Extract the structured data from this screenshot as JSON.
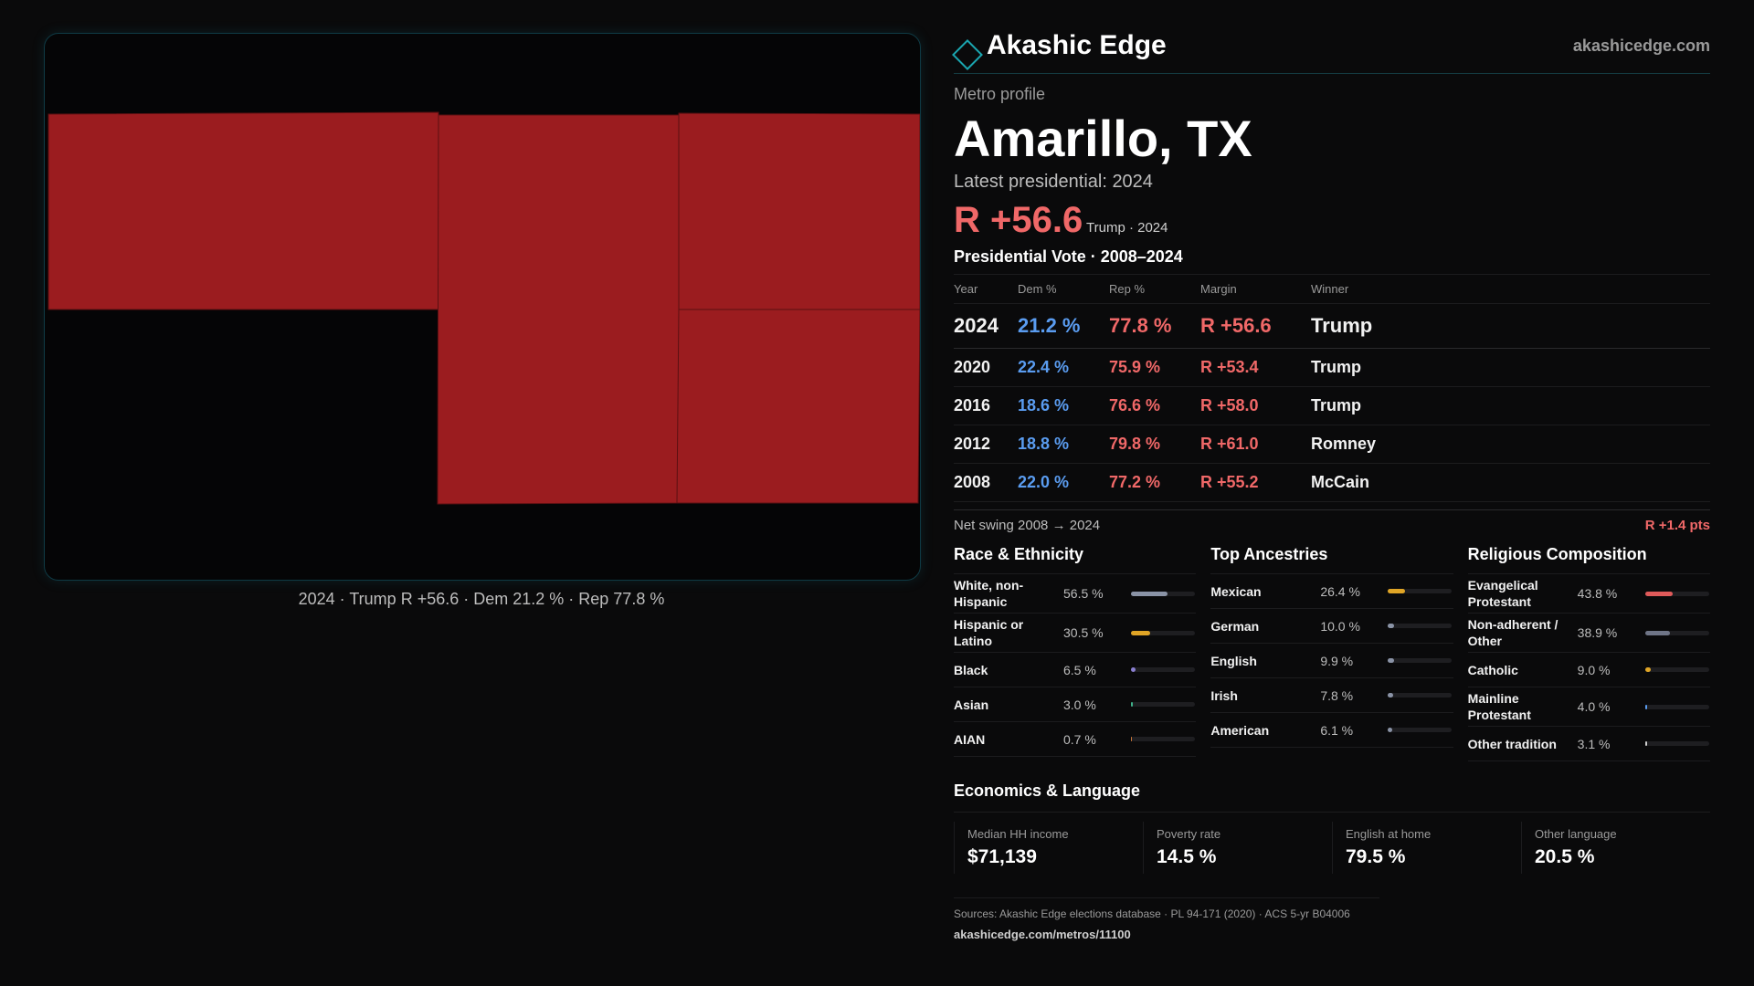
{
  "brand": {
    "name": "Akashic Edge",
    "site": "akashicedge.com"
  },
  "map": {
    "fill_color": "#9b1c1f",
    "caption": "2024 · Trump R +56.6 · Dem 21.2 % · Rep 77.8 %"
  },
  "profile": {
    "eyebrow": "Metro profile",
    "title": "Amarillo, TX",
    "latest_label": "Latest presidential: 2024",
    "margin": "R +56.6",
    "margin_sub": "Trump · 2024"
  },
  "vote": {
    "title": "Presidential Vote · 2008–2024",
    "headers": [
      "Year",
      "Dem %",
      "Rep %",
      "Margin",
      "Winner"
    ],
    "rows": [
      {
        "year": "2024",
        "dem": "21.2 %",
        "rep": "77.8 %",
        "margin": "R +56.6",
        "winner": "Trump"
      },
      {
        "year": "2020",
        "dem": "22.4 %",
        "rep": "75.9 %",
        "margin": "R +53.4",
        "winner": "Trump"
      },
      {
        "year": "2016",
        "dem": "18.6 %",
        "rep": "76.6 %",
        "margin": "R +58.0",
        "winner": "Trump"
      },
      {
        "year": "2012",
        "dem": "18.8 %",
        "rep": "79.8 %",
        "margin": "R +61.0",
        "winner": "Romney"
      },
      {
        "year": "2008",
        "dem": "22.0 %",
        "rep": "77.2 %",
        "margin": "R +55.2",
        "winner": "McCain"
      }
    ],
    "swing_label": "Net swing 2008 → 2024",
    "swing_value": "R +1.4 pts"
  },
  "race": {
    "title": "Race & Ethnicity",
    "items": [
      {
        "label": "White, non-Hispanic",
        "pct": "56.5 %",
        "value": 56.5,
        "color": "#8a93a6"
      },
      {
        "label": "Hispanic or Latino",
        "pct": "30.5 %",
        "value": 30.5,
        "color": "#e0a526"
      },
      {
        "label": "Black",
        "pct": "6.5 %",
        "value": 6.5,
        "color": "#8a7fd0"
      },
      {
        "label": "Asian",
        "pct": "3.0 %",
        "value": 3.0,
        "color": "#3fb28a"
      },
      {
        "label": "AIAN",
        "pct": "0.7 %",
        "value": 0.7,
        "color": "#c9763b"
      }
    ]
  },
  "ancestry": {
    "title": "Top Ancestries",
    "items": [
      {
        "label": "Mexican",
        "pct": "26.4 %",
        "value": 26.4,
        "color": "#e0a526"
      },
      {
        "label": "German",
        "pct": "10.0 %",
        "value": 10.0,
        "color": "#8a93a6"
      },
      {
        "label": "English",
        "pct": "9.9 %",
        "value": 9.9,
        "color": "#8a93a6"
      },
      {
        "label": "Irish",
        "pct": "7.8 %",
        "value": 7.8,
        "color": "#8a93a6"
      },
      {
        "label": "American",
        "pct": "6.1 %",
        "value": 6.1,
        "color": "#8a93a6"
      }
    ]
  },
  "religion": {
    "title": "Religious Composition",
    "items": [
      {
        "label": "Evangelical Protestant",
        "pct": "43.8 %",
        "value": 43.8,
        "color": "#e05a5a"
      },
      {
        "label": "Non-adherent / Other",
        "pct": "38.9 %",
        "value": 38.9,
        "color": "#6f7587"
      },
      {
        "label": "Catholic",
        "pct": "9.0 %",
        "value": 9.0,
        "color": "#e0a526"
      },
      {
        "label": "Mainline Protestant",
        "pct": "4.0 %",
        "value": 4.0,
        "color": "#5a9cf0"
      },
      {
        "label": "Other tradition",
        "pct": "3.1 %",
        "value": 3.1,
        "color": "#cfcfcf"
      }
    ]
  },
  "econ": {
    "title": "Economics & Language",
    "kpis": [
      {
        "label": "Median HH income",
        "value": "$71,139"
      },
      {
        "label": "Poverty rate",
        "value": "14.5 %"
      },
      {
        "label": "English at home",
        "value": "79.5 %"
      },
      {
        "label": "Other language",
        "value": "20.5 %"
      }
    ]
  },
  "footer": {
    "sources": "Sources: Akashic Edge elections database · PL 94-171 (2020) · ACS 5-yr B04006",
    "url": "akashicedge.com/metros/11100"
  }
}
